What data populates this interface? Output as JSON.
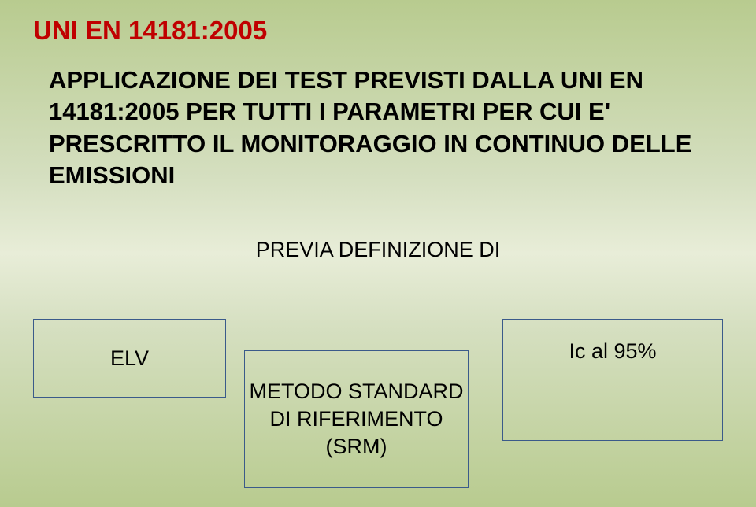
{
  "title": "UNI EN 14181:2005",
  "mainText": "APPLICAZIONE DEI TEST PREVISTI DALLA UNI EN 14181:2005 PER TUTTI I PARAMETRI PER CUI E' PRESCRITTO IL MONITORAGGIO IN CONTINUO DELLE EMISSIONI",
  "subText": "PREVIA DEFINIZIONE DI",
  "boxes": {
    "elv": "ELV",
    "method": "METODO STANDARD DI RIFERIMENTO (SRM)",
    "ic": "Ic al 95%"
  },
  "colors": {
    "titleColor": "#c00000",
    "textColor": "#000000",
    "boxBorder": "#3a5a8a",
    "bgTop": "#b8cb8f",
    "bgMid": "#e8edd8"
  }
}
